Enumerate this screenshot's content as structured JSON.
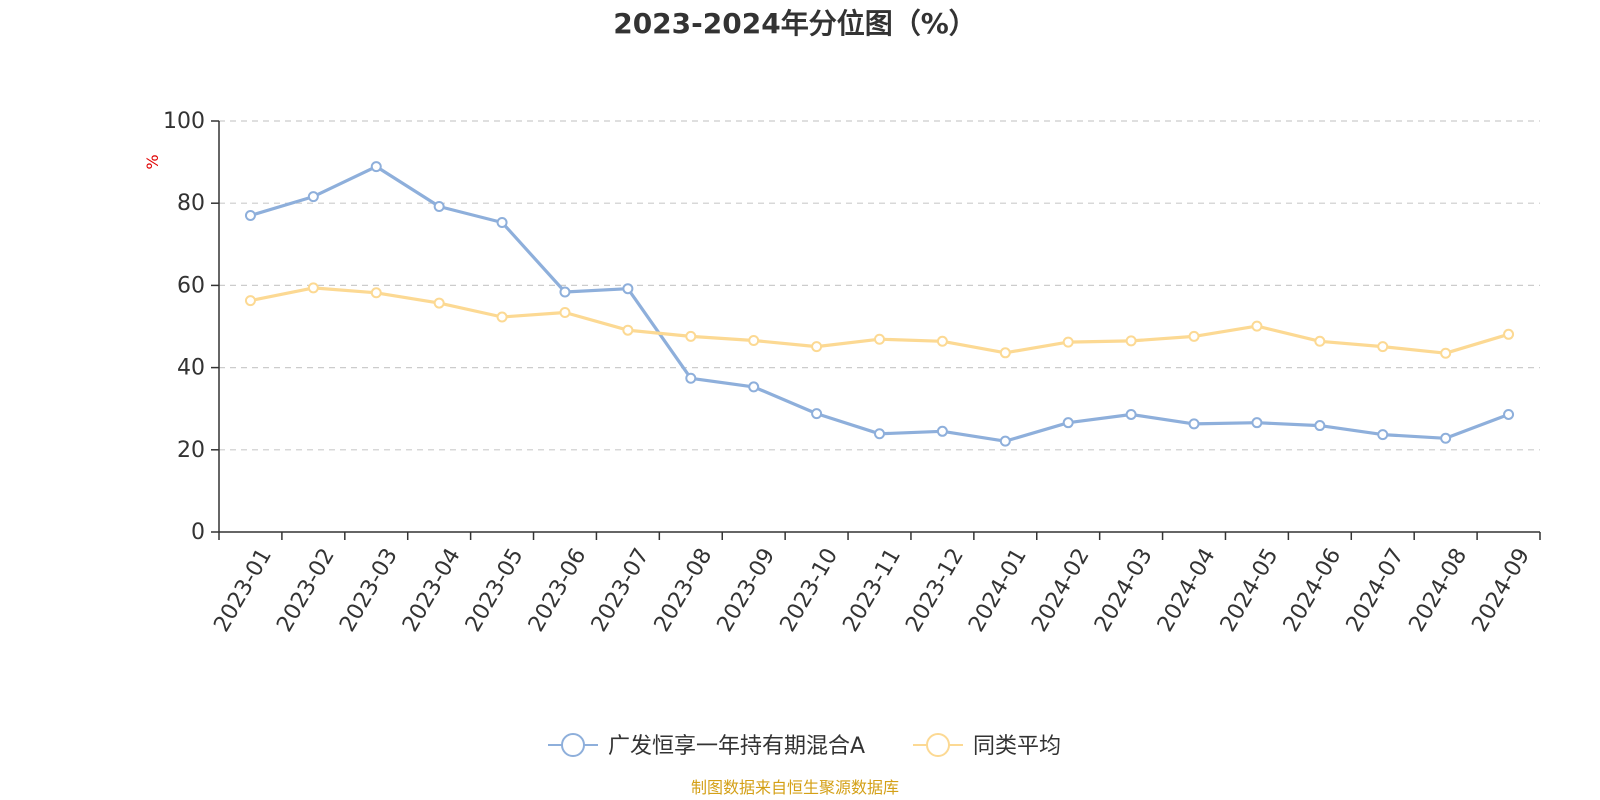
{
  "chart_data": {
    "type": "line",
    "title": "2023-2024年分位图（%）",
    "ylabel": "%",
    "xlabel": "",
    "ylim": [
      0,
      100
    ],
    "yticks": [
      "0",
      "20",
      "40",
      "60",
      "80",
      "100"
    ],
    "grid": true,
    "legend_position": "bottom-center",
    "categories": [
      "2023-01",
      "2023-02",
      "2023-03",
      "2023-04",
      "2023-05",
      "2023-06",
      "2023-07",
      "2023-08",
      "2023-09",
      "2023-10",
      "2023-11",
      "2023-12",
      "2024-01",
      "2024-02",
      "2024-03",
      "2024-04",
      "2024-05",
      "2024-06",
      "2024-07",
      "2024-08",
      "2024-09"
    ],
    "series": [
      {
        "name": "广发恒享一年持有期混合A",
        "color": "#8eafdb",
        "values": [
          77.0,
          81.6,
          88.9,
          79.2,
          75.3,
          58.4,
          59.2,
          37.4,
          35.3,
          28.8,
          23.9,
          24.5,
          22.1,
          26.6,
          28.6,
          26.3,
          26.6,
          25.9,
          23.7,
          22.8,
          28.6
        ]
      },
      {
        "name": "同类平均",
        "color": "#fcd993",
        "values": [
          56.3,
          59.4,
          58.2,
          55.7,
          52.3,
          53.4,
          49.1,
          47.6,
          46.6,
          45.1,
          46.9,
          46.4,
          43.6,
          46.2,
          46.5,
          47.6,
          50.1,
          46.4,
          45.1,
          43.5,
          48.1
        ]
      }
    ],
    "source_note": "制图数据来自恒生聚源数据库",
    "colors": {
      "axis": "#333333",
      "grid": "#cccccc",
      "unit": "#e00000",
      "source": "#d4a017"
    }
  }
}
